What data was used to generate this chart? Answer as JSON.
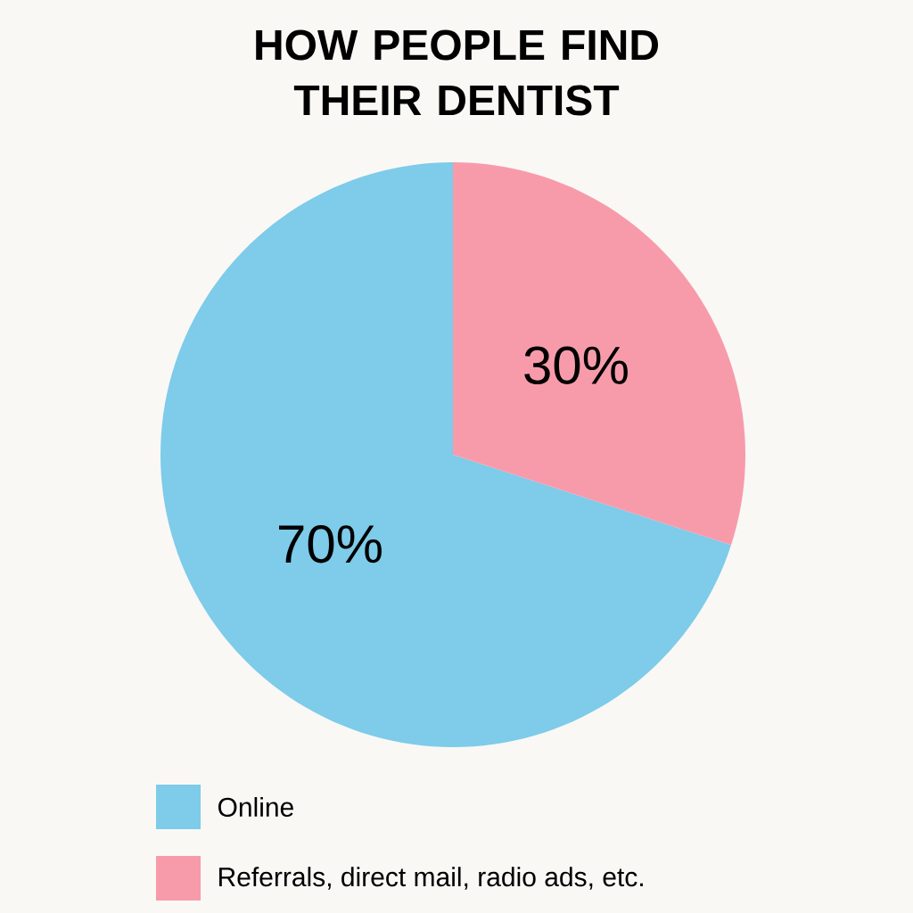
{
  "chart_data": {
    "type": "pie",
    "title": "HOW PEOPLE FIND THEIR DENTIST",
    "categories": [
      "Online",
      "Referrals, direct mail, radio ads, etc."
    ],
    "values": [
      70,
      30
    ],
    "colors": [
      "#7ecbea",
      "#f79bab"
    ],
    "value_labels": [
      "70%",
      "30%"
    ],
    "legend": "bottom"
  }
}
